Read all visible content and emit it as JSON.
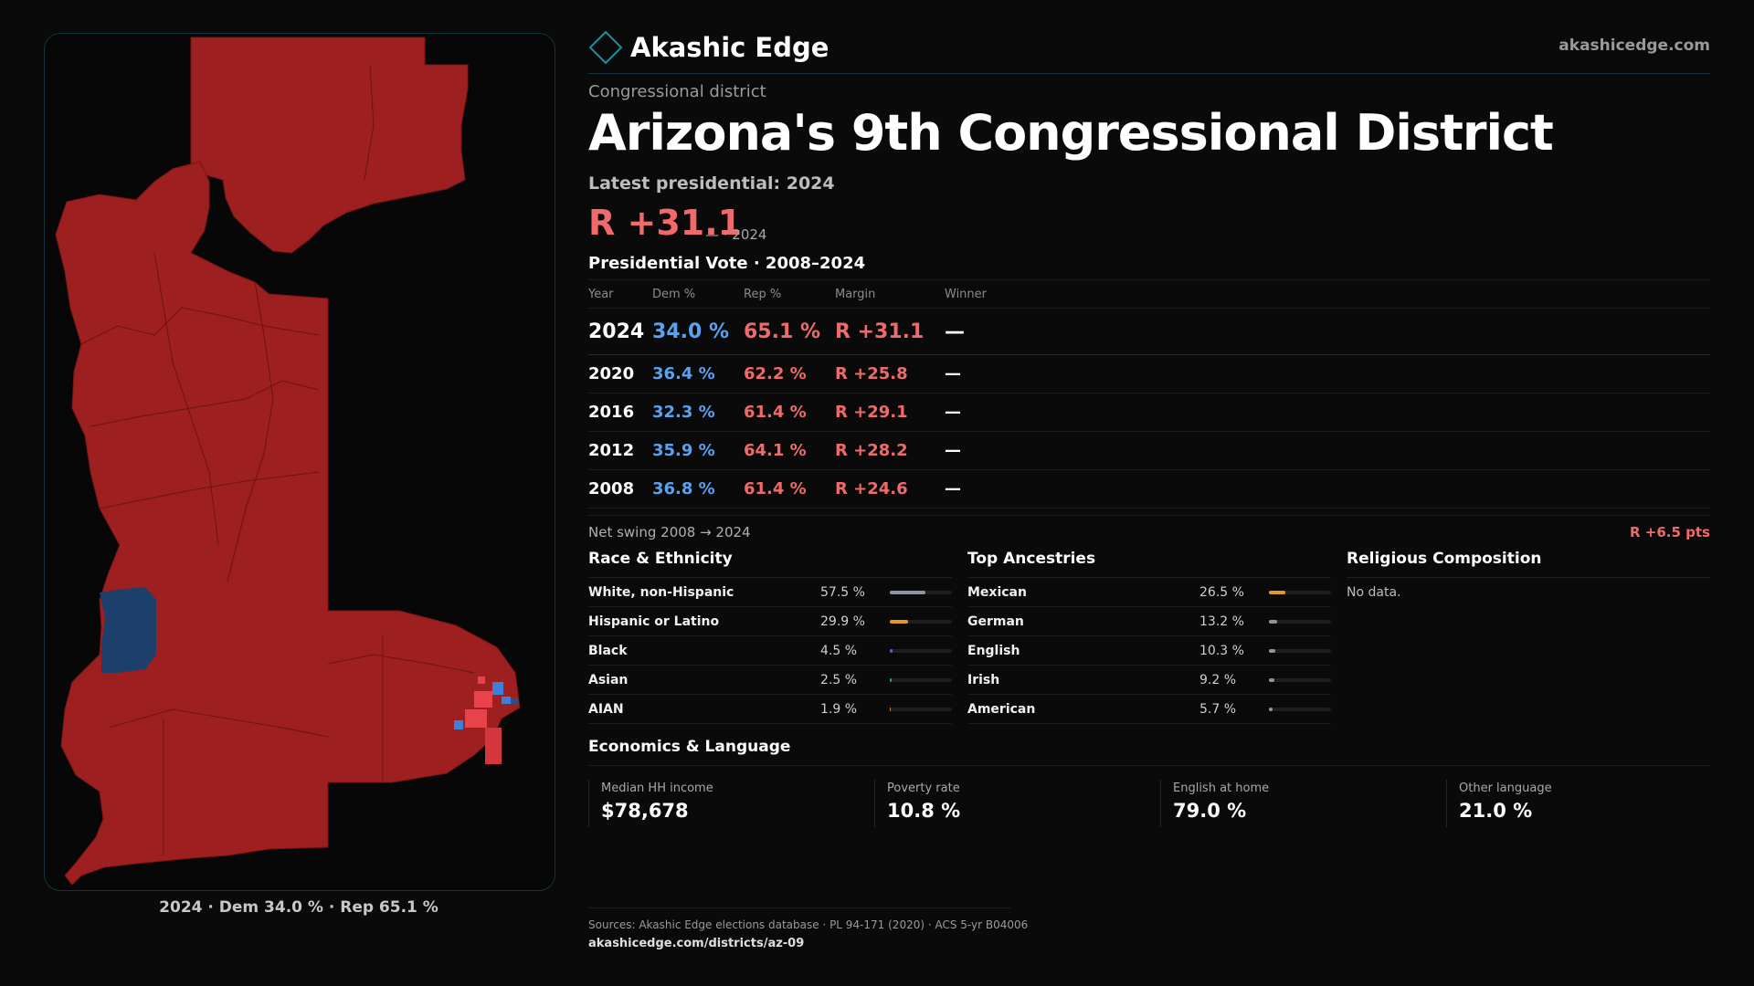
{
  "brand": {
    "name": "Akashic Edge",
    "url": "akashicedge.com",
    "logo_icon": "diamond-logo-icon"
  },
  "district": {
    "eyebrow": "Congressional district",
    "title": "Arizona's 9th Congressional District",
    "latest_label": "Latest presidential: 2024",
    "latest_margin": "R +31.1",
    "latest_sub": "— · 2024"
  },
  "map": {
    "caption": "2024 · Dem 34.0 % · Rep 65.1 %",
    "colors": {
      "rep": "#9e1f1f",
      "dem": "#1d3f6b",
      "rep_light": "#e8434a",
      "dem_light": "#3f7fd9"
    }
  },
  "presidential": {
    "title": "Presidential Vote · 2008–2024",
    "headers": {
      "year": "Year",
      "dem": "Dem %",
      "rep": "Rep %",
      "margin": "Margin",
      "winner": "Winner"
    },
    "rows": [
      {
        "year": "2024",
        "dem": "34.0 %",
        "rep": "65.1 %",
        "margin": "R +31.1",
        "winner": "—"
      },
      {
        "year": "2020",
        "dem": "36.4 %",
        "rep": "62.2 %",
        "margin": "R +25.8",
        "winner": "—"
      },
      {
        "year": "2016",
        "dem": "32.3 %",
        "rep": "61.4 %",
        "margin": "R +29.1",
        "winner": "—"
      },
      {
        "year": "2012",
        "dem": "35.9 %",
        "rep": "64.1 %",
        "margin": "R +28.2",
        "winner": "—"
      },
      {
        "year": "2008",
        "dem": "36.8 %",
        "rep": "61.4 %",
        "margin": "R +24.6",
        "winner": "—"
      }
    ],
    "swing_label": "Net swing 2008 → 2024",
    "swing_value": "R +6.5 pts"
  },
  "race": {
    "title": "Race & Ethnicity",
    "rows": [
      {
        "label": "White, non-Hispanic",
        "pct": "57.5 %",
        "value": 57.5,
        "color": "#8e96a3"
      },
      {
        "label": "Hispanic or Latino",
        "pct": "29.9 %",
        "value": 29.9,
        "color": "#e69a1c"
      },
      {
        "label": "Black",
        "pct": "4.5 %",
        "value": 4.5,
        "color": "#5a5ae0"
      },
      {
        "label": "Asian",
        "pct": "2.5 %",
        "value": 2.5,
        "color": "#2f9e6a"
      },
      {
        "label": "AIAN",
        "pct": "1.9 %",
        "value": 1.9,
        "color": "#c98a2e"
      }
    ]
  },
  "ancestry": {
    "title": "Top Ancestries",
    "rows": [
      {
        "label": "Mexican",
        "pct": "26.5 %",
        "value": 26.5,
        "color": "#e69a1c"
      },
      {
        "label": "German",
        "pct": "13.2 %",
        "value": 13.2,
        "color": "#8e96a3"
      },
      {
        "label": "English",
        "pct": "10.3 %",
        "value": 10.3,
        "color": "#8e96a3"
      },
      {
        "label": "Irish",
        "pct": "9.2 %",
        "value": 9.2,
        "color": "#8e96a3"
      },
      {
        "label": "American",
        "pct": "5.7 %",
        "value": 5.7,
        "color": "#8e96a3"
      }
    ]
  },
  "religion": {
    "title": "Religious Composition",
    "empty": "No data."
  },
  "economics": {
    "title": "Economics & Language",
    "items": [
      {
        "label": "Median HH income",
        "value": "$78,678"
      },
      {
        "label": "Poverty rate",
        "value": "10.8 %"
      },
      {
        "label": "English at home",
        "value": "79.0 %"
      },
      {
        "label": "Other language",
        "value": "21.0 %"
      }
    ]
  },
  "footer": {
    "sources": "Sources: Akashic Edge elections database · PL 94-171 (2020) · ACS 5-yr B04006",
    "url": "akashicedge.com/districts/az-09"
  }
}
